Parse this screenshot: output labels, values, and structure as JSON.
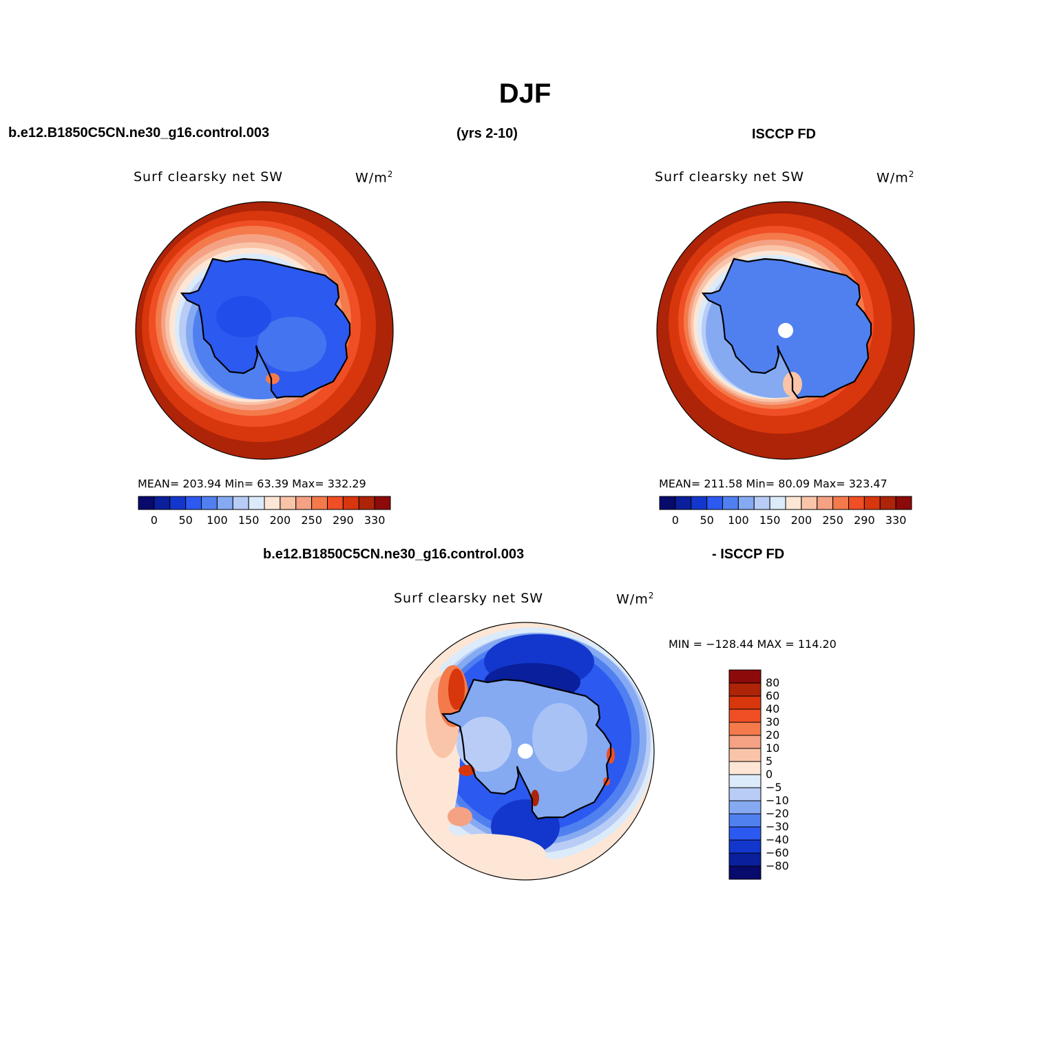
{
  "header": {
    "title": "DJF",
    "case_name": "b.e12.B1850C5CN.ne30_g16.control.003",
    "years": "(yrs 2-10)",
    "obs_name": "ISCCP FD",
    "diff_case": "b.e12.B1850C5CN.ne30_g16.control.003",
    "diff_obs": "- ISCCP FD"
  },
  "panels": {
    "model": {
      "variable": "Surf clearsky net SW",
      "units": "W/m",
      "units_exp": "2",
      "stats": "MEAN= 203.94   Min=   63.39   Max=  332.29"
    },
    "obs": {
      "variable": "Surf clearsky net SW",
      "units": "W/m",
      "units_exp": "2",
      "stats": "MEAN= 211.58   Min=   80.09   Max=  323.47"
    },
    "diff": {
      "variable": "Surf clearsky net SW",
      "units": "W/m",
      "units_exp": "2",
      "stats": "MIN = −128.44  MAX =  114.20"
    }
  },
  "colorbar_abs": {
    "colors": [
      "#080a6c",
      "#0a1f9c",
      "#1337cc",
      "#2c59f0",
      "#5080f0",
      "#85aaf2",
      "#b8ccf6",
      "#dcebfa",
      "#fde6d6",
      "#f9c4a8",
      "#f5a184",
      "#f47a4b",
      "#f04e24",
      "#d8360c",
      "#ad2408",
      "#8c0a0a"
    ],
    "tick_labels": [
      "0",
      "50",
      "100",
      "150",
      "200",
      "250",
      "290",
      "330"
    ]
  },
  "colorbar_diff": {
    "colors_top_to_bottom": [
      "#8c0a0a",
      "#ad2408",
      "#d8360c",
      "#f04e24",
      "#f47a4b",
      "#f5a184",
      "#f9c4a8",
      "#fde6d6",
      "#dcebfa",
      "#b8ccf6",
      "#85aaf2",
      "#5080f0",
      "#2c59f0",
      "#1337cc",
      "#0a1f9c",
      "#080a6c"
    ],
    "tick_labels": [
      "80",
      "60",
      "40",
      "30",
      "20",
      "10",
      "5",
      "0",
      "−5",
      "−10",
      "−20",
      "−30",
      "−40",
      "−60",
      "−80"
    ]
  }
}
